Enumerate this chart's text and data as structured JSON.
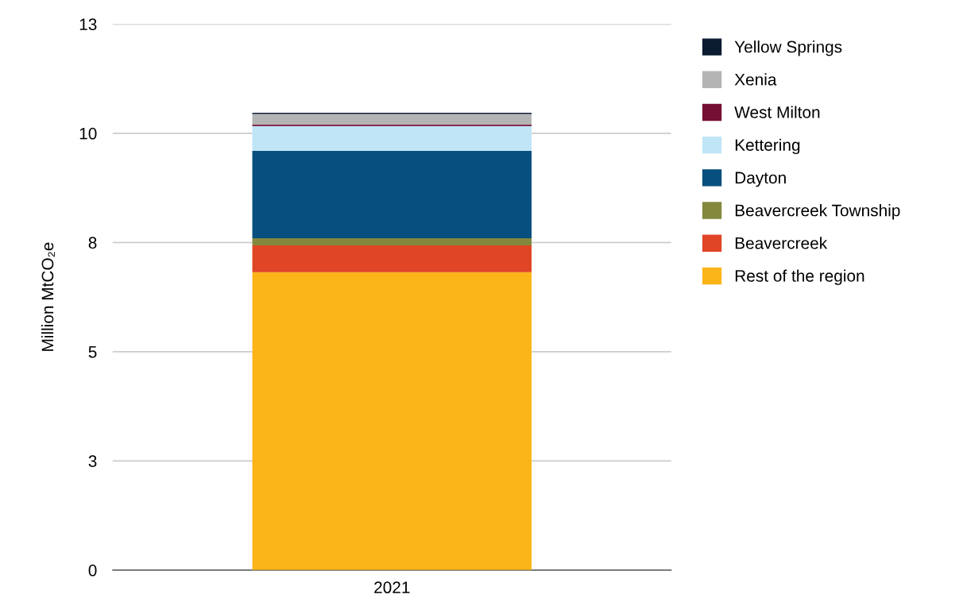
{
  "chart_data": {
    "type": "bar",
    "stacked": true,
    "ylabel": "Million MtCO₂e",
    "categories": [
      "2021"
    ],
    "series": [
      {
        "name": "Rest of the region",
        "color": "#fbb518",
        "values": [
          7.09
        ]
      },
      {
        "name": "Beavercreek",
        "color": "#e04526",
        "values": [
          0.64
        ]
      },
      {
        "name": "Beavercreek Township",
        "color": "#84883d",
        "values": [
          0.17
        ]
      },
      {
        "name": "Dayton",
        "color": "#064f7e",
        "values": [
          2.08
        ]
      },
      {
        "name": "Kettering",
        "color": "#bfe5f6",
        "values": [
          0.59
        ]
      },
      {
        "name": "West Milton",
        "color": "#751034",
        "values": [
          0.04
        ]
      },
      {
        "name": "Xenia",
        "color": "#b4b4b4",
        "values": [
          0.25
        ]
      },
      {
        "name": "Yellow Springs",
        "color": "#0b1b30",
        "values": [
          0.03
        ]
      }
    ],
    "ylim": [
      0,
      13
    ],
    "yticks": [
      0,
      {
        "value": 2.6,
        "label": "3"
      },
      {
        "value": 5.2,
        "label": "5"
      },
      {
        "value": 7.8,
        "label": "8"
      },
      {
        "value": 10.4,
        "label": "10"
      },
      13
    ],
    "grid": "y",
    "legend": "right"
  }
}
